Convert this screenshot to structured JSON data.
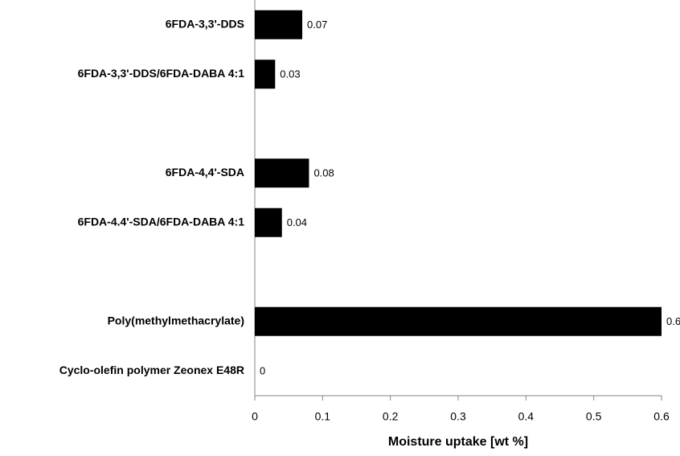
{
  "chart_data": {
    "type": "bar",
    "orientation": "horizontal",
    "categories": [
      "6FDA-3,3'-DDS",
      "6FDA-3,3'-DDS/6FDA-DABA 4:1",
      null,
      "6FDA-4,4'-SDA",
      "6FDA-4.4'-SDA/6FDA-DABA 4:1",
      null,
      "Poly(methylmethacrylate)",
      "Cyclo-olefin polymer Zeonex E48R"
    ],
    "values": [
      0.07,
      0.03,
      null,
      0.08,
      0.04,
      null,
      0.6,
      0
    ],
    "color": "#000000",
    "x_label": "Moisture uptake [wt %]",
    "xlim": [
      0,
      0.6
    ],
    "xticks": [
      0,
      0.1,
      0.2,
      0.3,
      0.4,
      0.5,
      0.6
    ],
    "grid": false
  }
}
